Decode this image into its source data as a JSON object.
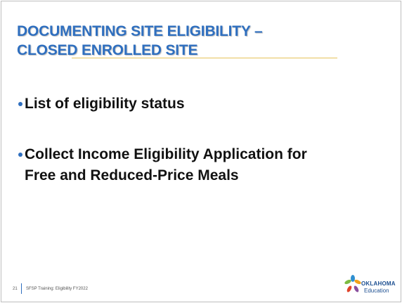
{
  "slide": {
    "title": [
      "DOCUMENTING SITE ELIGIBILITY –",
      "CLOSED ENROLLED SITE"
    ],
    "bullets": [
      [
        "List of eligibility status"
      ],
      [
        "Collect Income Eligibility Application for",
        "Free and Reduced-Price Meals"
      ]
    ],
    "footer": {
      "page_number": "21",
      "text": "SFSP Training: Eligibility FY2022"
    },
    "logo": {
      "line1": "OKLAHOMA",
      "line2": "Education"
    }
  }
}
